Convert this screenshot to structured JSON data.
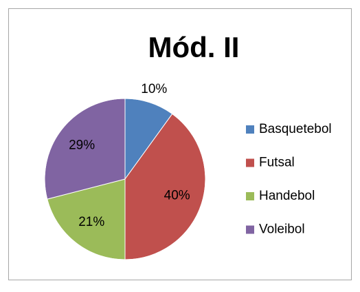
{
  "chart_data": {
    "type": "pie",
    "title": "Mód. II",
    "categories": [
      "Basquetebol",
      "Futsal",
      "Handebol",
      "Voleibol"
    ],
    "values": [
      10,
      40,
      21,
      29
    ],
    "value_labels": [
      "10%",
      "40%",
      "21%",
      "29%"
    ],
    "colors": [
      "#4f81bd",
      "#c0504d",
      "#9bbb59",
      "#8064a2"
    ],
    "legend": "right"
  }
}
